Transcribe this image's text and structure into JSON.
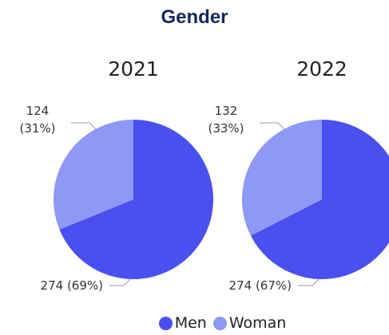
{
  "title": "Gender",
  "chart_data": [
    {
      "type": "pie",
      "title": "2021",
      "categories": [
        "Men",
        "Woman"
      ],
      "colors": [
        "#4a4ff0",
        "#8e98f5"
      ],
      "values": [
        274,
        124
      ],
      "value_labels": [
        "274 (69%)",
        "124 (31%)"
      ]
    },
    {
      "type": "pie",
      "title": "2022",
      "categories": [
        "Men",
        "Woman"
      ],
      "colors": [
        "#4a4ff0",
        "#8e98f5"
      ],
      "values": [
        274,
        132
      ],
      "value_labels": [
        "274 (67%)",
        "132 (33%)"
      ]
    }
  ]
}
